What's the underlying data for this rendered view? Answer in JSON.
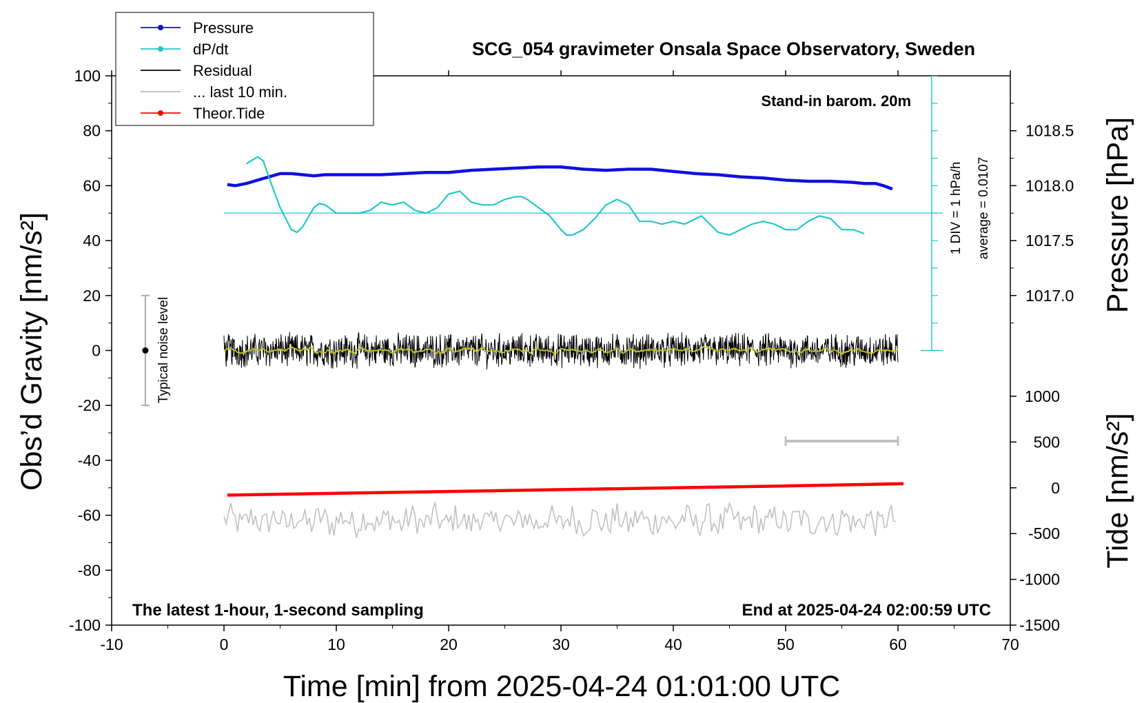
{
  "chart_data": {
    "type": "line",
    "title": "SCG_054 gravimeter Onsala Space Observatory, Sweden",
    "xlabel": "Time [min] from 2025-04-24 01:01:00 UTC",
    "ylabel_left": "Obs’d Gravity [nm/s²]",
    "ylabel_right_pressure": "Pressure [hPa]",
    "ylabel_right_tide": "Tide [nm/s²]",
    "xlim": [
      -10,
      70
    ],
    "ylim_left": [
      -100,
      100
    ],
    "x_ticks": [
      "-10",
      "0",
      "10",
      "20",
      "30",
      "40",
      "50",
      "60",
      "70"
    ],
    "y_ticks_left": [
      "100",
      "80",
      "60",
      "40",
      "20",
      "0",
      "-20",
      "-40",
      "-60",
      "-80",
      "-100"
    ],
    "pressure_axis": {
      "range": [
        1016.5,
        1019.0
      ],
      "ticks": [
        "1018.5",
        "1018.0",
        "1017.5",
        "1017.0"
      ]
    },
    "tide_axis": {
      "range": [
        -1500,
        1000
      ],
      "ticks": [
        "1000",
        "500",
        "0",
        "-500",
        "-1000",
        "-1500"
      ]
    },
    "annotations": {
      "barometer": "Stand-in barom. 20m",
      "scale": "1 DIV = 1 hPa/h",
      "average": "average = 0.0107",
      "noise": "Typical noise level",
      "latest": "The latest 1-hour, 1-second sampling",
      "end": "End at 2025-04-24 02:00:59 UTC"
    },
    "legend": [
      {
        "label": "Pressure",
        "color": "#1010e0",
        "marker": true
      },
      {
        "label": "dP/dt",
        "color": "#20c8c8",
        "marker": true
      },
      {
        "label": "Residual",
        "color": "#000000",
        "marker": false
      },
      {
        "label": "... last 10 min.",
        "color": "#b8b8b8",
        "marker": false
      },
      {
        "label": "Theor.Tide",
        "color": "#ff0000",
        "marker": true
      }
    ],
    "series": [
      {
        "name": "Pressure",
        "units": "hPa",
        "x": [
          0.3,
          1,
          2,
          3,
          4,
          5,
          6,
          7,
          8,
          9,
          10,
          12,
          14,
          16,
          18,
          20,
          22,
          24,
          26,
          28,
          30,
          32,
          34,
          36,
          38,
          40,
          42,
          44,
          46,
          48,
          50,
          52,
          54,
          56,
          57,
          58,
          58.7,
          59.5
        ],
        "values": [
          1018.01,
          1018.0,
          1018.02,
          1018.05,
          1018.08,
          1018.11,
          1018.11,
          1018.1,
          1018.09,
          1018.1,
          1018.1,
          1018.1,
          1018.1,
          1018.11,
          1018.12,
          1018.12,
          1018.14,
          1018.15,
          1018.16,
          1018.17,
          1018.17,
          1018.15,
          1018.14,
          1018.15,
          1018.15,
          1018.13,
          1018.11,
          1018.1,
          1018.08,
          1018.07,
          1018.05,
          1018.04,
          1018.04,
          1018.03,
          1018.02,
          1018.02,
          1018.0,
          1017.97
        ]
      },
      {
        "name": "dP/dt",
        "units": "gravity-axis units (baseline 50)",
        "x": [
          2,
          3,
          3.5,
          4,
          5,
          6,
          6.5,
          7,
          8,
          8.5,
          9,
          10,
          11,
          12,
          13,
          14,
          15,
          16,
          17,
          18,
          19,
          20,
          21,
          22,
          23,
          24,
          25,
          26,
          26.5,
          27,
          28,
          29,
          30,
          30.5,
          31,
          32,
          33,
          34,
          35,
          36,
          37,
          38,
          39,
          40,
          41,
          42,
          42.5,
          43,
          44,
          45,
          46,
          47,
          48,
          49,
          50,
          51,
          52,
          53,
          54,
          55,
          56,
          56.7,
          57
        ],
        "values": [
          68,
          70.5,
          69,
          63,
          52,
          44,
          43,
          45,
          52,
          53.5,
          53,
          50,
          50,
          50,
          51,
          54,
          53,
          54,
          51,
          50,
          52,
          57,
          58,
          54,
          53,
          53,
          55,
          56,
          56,
          55,
          52,
          49,
          44,
          42,
          42,
          44,
          48,
          53,
          55,
          53,
          47,
          47,
          46,
          47,
          46,
          48,
          49,
          47,
          43,
          42,
          44,
          46,
          47,
          46,
          44,
          44,
          47,
          49,
          48,
          44,
          44,
          43,
          42.5
        ]
      },
      {
        "name": "Residual",
        "mean": 0,
        "range": [
          -7,
          8
        ],
        "x_range": [
          0,
          60
        ]
      },
      {
        "name": "... last 10 min.",
        "mean": -62,
        "range": [
          -70,
          -55
        ],
        "x_range": [
          0,
          60
        ]
      },
      {
        "name": "Theor.Tide",
        "units": "nm/s²",
        "x": [
          0.3,
          10,
          20,
          30,
          40,
          50,
          60.5
        ],
        "values": [
          -80,
          -60,
          -40,
          -20,
          0,
          20,
          45
        ]
      },
      {
        "name": "Typical noise level",
        "x": -7,
        "center": 0,
        "range": [
          -20,
          20
        ]
      },
      {
        "name": "Time scale bar",
        "x_range": [
          50,
          60
        ],
        "y": -33
      }
    ]
  }
}
